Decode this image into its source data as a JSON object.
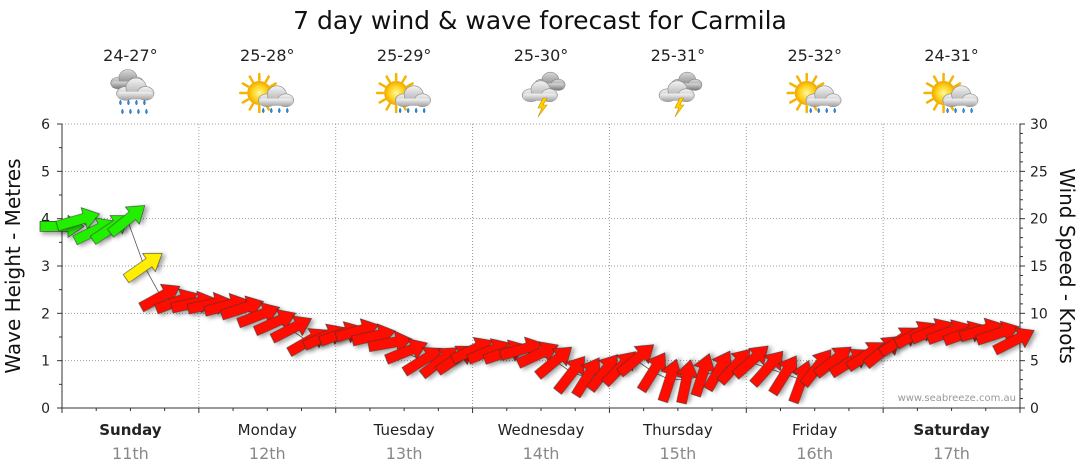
{
  "chart_data": {
    "type": "line",
    "title": "7 day wind & wave forecast for Carmila",
    "ylabel_left": "Wave Height - Metres",
    "ylabel_right": "Wind Speed - Knots",
    "ylim_left": [
      0,
      6
    ],
    "ylim_right": [
      0,
      30
    ],
    "yticks_left": [
      "0",
      "1",
      "2",
      "3",
      "4",
      "5",
      "6"
    ],
    "yticks_right": [
      "0",
      "5",
      "10",
      "15",
      "20",
      "25",
      "30"
    ],
    "grid": true,
    "credit": "www.seabreeze.com.au",
    "days": [
      {
        "day": "Sunday",
        "date": "11th",
        "bold": true,
        "temp": "24-27°",
        "icon": "rain-cloud-icon"
      },
      {
        "day": "Monday",
        "date": "12th",
        "bold": false,
        "temp": "25-28°",
        "icon": "sun-showers-icon"
      },
      {
        "day": "Tuesday",
        "date": "13th",
        "bold": false,
        "temp": "25-29°",
        "icon": "sun-showers-icon"
      },
      {
        "day": "Wednesday",
        "date": "14th",
        "bold": false,
        "temp": "25-30°",
        "icon": "thunderstorm-icon"
      },
      {
        "day": "Thursday",
        "date": "15th",
        "bold": false,
        "temp": "25-31°",
        "icon": "thunderstorm-icon"
      },
      {
        "day": "Friday",
        "date": "16th",
        "bold": false,
        "temp": "25-32°",
        "icon": "sun-showers-icon"
      },
      {
        "day": "Saturday",
        "date": "17th",
        "bold": true,
        "temp": "24-31°",
        "icon": "sun-showers-icon"
      }
    ],
    "series": [
      {
        "name": "Wind Speed",
        "unit": "knots",
        "x_days": [
          0.0,
          0.15,
          0.3,
          0.45,
          0.6,
          0.7,
          0.85,
          1.0,
          1.2,
          1.4,
          1.6,
          1.8,
          2.0,
          2.2,
          2.4,
          2.6,
          2.8,
          3.0,
          3.2,
          3.4,
          3.6,
          3.8,
          4.0,
          4.2,
          4.4,
          4.6,
          4.8,
          5.0,
          5.2,
          5.4,
          5.6,
          5.8,
          6.0,
          6.2,
          6.4,
          6.6,
          6.8,
          7.0
        ],
        "values": [
          19,
          20,
          18,
          21,
          15,
          12,
          11,
          11,
          11,
          10,
          9,
          7,
          8,
          8,
          7,
          5,
          5,
          6,
          6,
          6,
          5,
          3,
          4,
          5,
          3,
          3,
          4,
          5,
          4,
          3,
          5,
          5,
          6,
          8,
          8,
          8,
          8,
          7
        ],
        "directions_deg": [
          270,
          250,
          240,
          230,
          235,
          240,
          250,
          260,
          255,
          250,
          245,
          240,
          250,
          255,
          260,
          240,
          230,
          245,
          250,
          255,
          230,
          210,
          220,
          230,
          200,
          190,
          210,
          230,
          220,
          200,
          230,
          240,
          230,
          240,
          250,
          250,
          255,
          240
        ],
        "colors": [
          "#22ee00",
          "#22ee00",
          "#22ee00",
          "#22ee00",
          "#ffee00",
          "#ffee00",
          "#ff1100",
          "#ff1100"
        ]
      }
    ]
  }
}
